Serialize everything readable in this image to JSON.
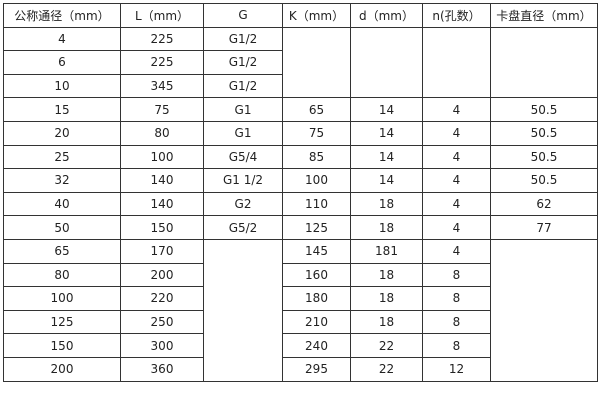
{
  "headers": [
    "公称通径（mm）",
    "L（mm）",
    "G",
    "K（mm）",
    "d（mm）",
    "n(孔数）",
    "卡盘直径（mm）"
  ],
  "rows": [
    [
      "4",
      "225",
      "G1/2",
      "",
      "",
      "",
      ""
    ],
    [
      "6",
      "225",
      "G1/2",
      "",
      "",
      "",
      ""
    ],
    [
      "10",
      "345",
      "G1/2",
      "",
      "",
      "",
      ""
    ],
    [
      "15",
      "75",
      "G1",
      "65",
      "14",
      "4",
      "50.5"
    ],
    [
      "20",
      "80",
      "G1",
      "75",
      "14",
      "4",
      "50.5"
    ],
    [
      "25",
      "100",
      "G5/4",
      "85",
      "14",
      "4",
      "50.5"
    ],
    [
      "32",
      "140",
      "G1  1/2",
      "100",
      "14",
      "4",
      "50.5"
    ],
    [
      "40",
      "140",
      "G2",
      "110",
      "18",
      "4",
      "62"
    ],
    [
      "50",
      "150",
      "G5/2",
      "125",
      "18",
      "4",
      "77"
    ],
    [
      "65",
      "170",
      "",
      "145",
      "181",
      "4",
      ""
    ],
    [
      "80",
      "200",
      "",
      "160",
      "18",
      "8",
      ""
    ],
    [
      "100",
      "220",
      "",
      "180",
      "18",
      "8",
      ""
    ],
    [
      "125",
      "250",
      "",
      "210",
      "18",
      "8",
      ""
    ],
    [
      "150",
      "300",
      "",
      "240",
      "22",
      "8",
      ""
    ],
    [
      "200",
      "360",
      "",
      "295",
      "22",
      "12",
      ""
    ]
  ]
}
